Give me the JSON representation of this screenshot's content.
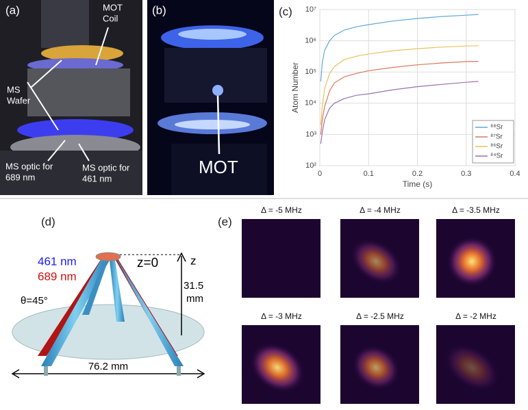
{
  "figure": {
    "a": {
      "label": "(a)",
      "annotations": [
        [
          "MOT",
          "Coil"
        ],
        [
          "MS",
          "Wafer"
        ],
        [
          "MS optic for",
          "689 nm"
        ],
        [
          "MS optic for",
          "461 nm"
        ]
      ]
    },
    "b": {
      "label": "(b)",
      "annotations": [
        [
          "MOT"
        ]
      ]
    },
    "c": {
      "label": "(c)"
    },
    "d": {
      "label": "(d)",
      "blue": "461 nm",
      "red": "689 nm",
      "z0": "z=0",
      "z": "z",
      "height": [
        "31.5",
        "mm"
      ],
      "angle": "θ=45°",
      "width": "76.2 mm"
    },
    "e": {
      "label": "(e)",
      "titles": [
        "Δ = -5 MHz",
        "Δ = -4 MHz",
        "Δ = -3.5 MHz",
        "Δ = -3 MHz",
        "Δ = -2.5 MHz",
        "Δ = -2 MHz"
      ]
    }
  },
  "chart_data": {
    "type": "line",
    "x_label": "Time (s)",
    "y_label": "Atom Number",
    "log_y": true,
    "grid": true,
    "legend": "lower right",
    "x": [
      0.002,
      0.005,
      0.01,
      0.02,
      0.03,
      0.05,
      0.075,
      0.1,
      0.15,
      0.2,
      0.25,
      0.3,
      0.325
    ],
    "xlim": [
      0,
      0.4
    ],
    "xticks": [
      0,
      0.1,
      0.2,
      0.3,
      0.4
    ],
    "ylim": [
      100,
      10000000
    ],
    "yticks": [
      {
        "value": 100,
        "label": "10²"
      },
      {
        "value": 1000,
        "label": "10³"
      },
      {
        "value": 10000,
        "label": "10⁴"
      },
      {
        "value": 100000,
        "label": "10⁵"
      },
      {
        "value": 1000000,
        "label": "10⁶"
      },
      {
        "value": 10000000,
        "label": "10⁷"
      }
    ],
    "series": [
      {
        "name": "⁸⁸Sr",
        "color": "#5fa8d8",
        "values": [
          50000,
          200000,
          500000,
          1000000,
          1500000,
          2200000,
          2800000,
          3300000,
          4300000,
          5200000,
          6000000,
          6600000,
          7000000
        ]
      },
      {
        "name": "⁸⁷Sr",
        "color": "#d9785a",
        "values": [
          1000,
          3000,
          8000,
          25000,
          45000,
          70000,
          90000,
          110000,
          140000,
          170000,
          195000,
          215000,
          220000
        ]
      },
      {
        "name": "⁸⁶Sr",
        "color": "#e8c25a",
        "values": [
          2000,
          8000,
          30000,
          90000,
          150000,
          250000,
          320000,
          380000,
          480000,
          560000,
          630000,
          680000,
          700000
        ]
      },
      {
        "name": "⁸⁴Sr",
        "color": "#9b6fb0",
        "values": [
          500,
          1200,
          3000,
          7000,
          10000,
          14000,
          18000,
          20000,
          27000,
          34000,
          40000,
          47000,
          50000
        ]
      }
    ]
  }
}
